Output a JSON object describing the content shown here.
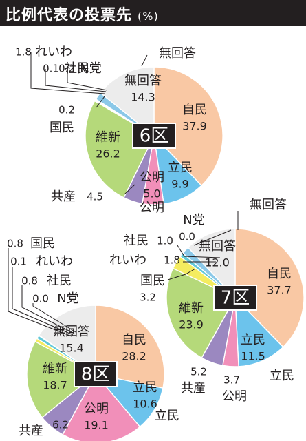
{
  "header": {
    "title": "比例代表の投票先",
    "unit": "(%)"
  },
  "colors": {
    "自民": "#f9c8a4",
    "立民": "#6cc3ec",
    "公明": "#f18fb9",
    "共産": "#9b88c0",
    "維新": "#b5d97a",
    "国民": "#f4ec5f",
    "N党": "#f6f6f6",
    "社民": "#62c8d8",
    "れいわ": "#8bc8e8",
    "無回答": "#ececec",
    "text": "#231f20",
    "frame": "#231f20"
  },
  "chart_data": [
    {
      "type": "pie",
      "district": "6区",
      "slices": [
        {
          "party": "自民",
          "value": 37.9
        },
        {
          "party": "立民",
          "value": 9.9
        },
        {
          "party": "公明",
          "value": 5.0
        },
        {
          "party": "共産",
          "value": 4.5
        },
        {
          "party": "維新",
          "value": 26.2
        },
        {
          "party": "国民",
          "value": 0.2
        },
        {
          "party": "N党",
          "value": 0.2
        },
        {
          "party": "社民",
          "value": 0.1
        },
        {
          "party": "れいわ",
          "value": 1.8
        },
        {
          "party": "無回答",
          "value": 14.3
        }
      ]
    },
    {
      "type": "pie",
      "district": "7区",
      "slices": [
        {
          "party": "自民",
          "value": 37.7
        },
        {
          "party": "立民",
          "value": 11.5
        },
        {
          "party": "公明",
          "value": 3.7
        },
        {
          "party": "共産",
          "value": 5.2
        },
        {
          "party": "維新",
          "value": 23.9
        },
        {
          "party": "国民",
          "value": 3.2
        },
        {
          "party": "N党",
          "value": 0.0
        },
        {
          "party": "社民",
          "value": 1.0
        },
        {
          "party": "れいわ",
          "value": 1.8
        },
        {
          "party": "無回答",
          "value": 12.0
        }
      ]
    },
    {
      "type": "pie",
      "district": "8区",
      "slices": [
        {
          "party": "自民",
          "value": 28.2
        },
        {
          "party": "立民",
          "value": 10.6
        },
        {
          "party": "公明",
          "value": 19.1
        },
        {
          "party": "共産",
          "value": 6.2
        },
        {
          "party": "維新",
          "value": 18.7
        },
        {
          "party": "国民",
          "value": 0.8
        },
        {
          "party": "N党",
          "value": 0.0
        },
        {
          "party": "社民",
          "value": 0.8
        },
        {
          "party": "れいわ",
          "value": 0.1
        },
        {
          "party": "無回答",
          "value": 15.4
        }
      ]
    }
  ]
}
